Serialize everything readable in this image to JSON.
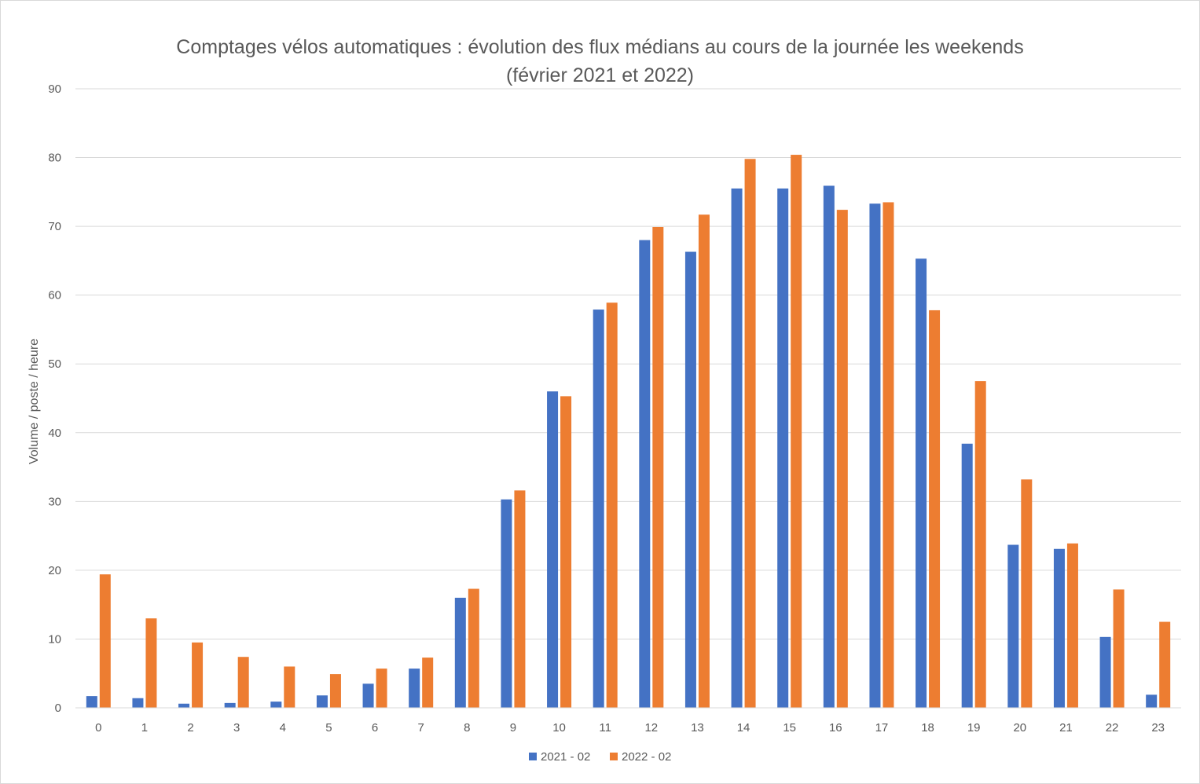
{
  "chart_data": {
    "type": "bar",
    "title": "Comptages vélos automatiques : évolution des flux médians au cours de la journée les weekends",
    "subtitle": "(février 2021 et 2022)",
    "xlabel": "",
    "ylabel": "Volume / poste / heure",
    "ylim": [
      0,
      90
    ],
    "yticks": [
      0,
      10,
      20,
      30,
      40,
      50,
      60,
      70,
      80,
      90
    ],
    "grid": true,
    "legend_position": "bottom",
    "categories": [
      "0",
      "1",
      "2",
      "3",
      "4",
      "5",
      "6",
      "7",
      "8",
      "9",
      "10",
      "11",
      "12",
      "13",
      "14",
      "15",
      "16",
      "17",
      "18",
      "19",
      "20",
      "21",
      "22",
      "23"
    ],
    "series": [
      {
        "name": "2021 - 02",
        "color": "#4472c4",
        "values": [
          1.7,
          1.4,
          0.6,
          0.7,
          0.9,
          1.8,
          3.5,
          5.7,
          16.0,
          30.3,
          46.0,
          57.9,
          68.0,
          66.3,
          75.5,
          75.5,
          75.9,
          73.3,
          65.3,
          38.4,
          23.7,
          23.1,
          10.3,
          1.9
        ]
      },
      {
        "name": "2022 - 02",
        "color": "#ed7d31",
        "values": [
          19.4,
          13.0,
          9.5,
          7.4,
          6.0,
          4.9,
          5.7,
          7.3,
          17.3,
          31.6,
          45.3,
          58.9,
          69.9,
          71.7,
          79.8,
          80.4,
          72.4,
          73.5,
          57.8,
          47.5,
          33.2,
          23.9,
          17.2,
          12.5
        ]
      }
    ]
  }
}
